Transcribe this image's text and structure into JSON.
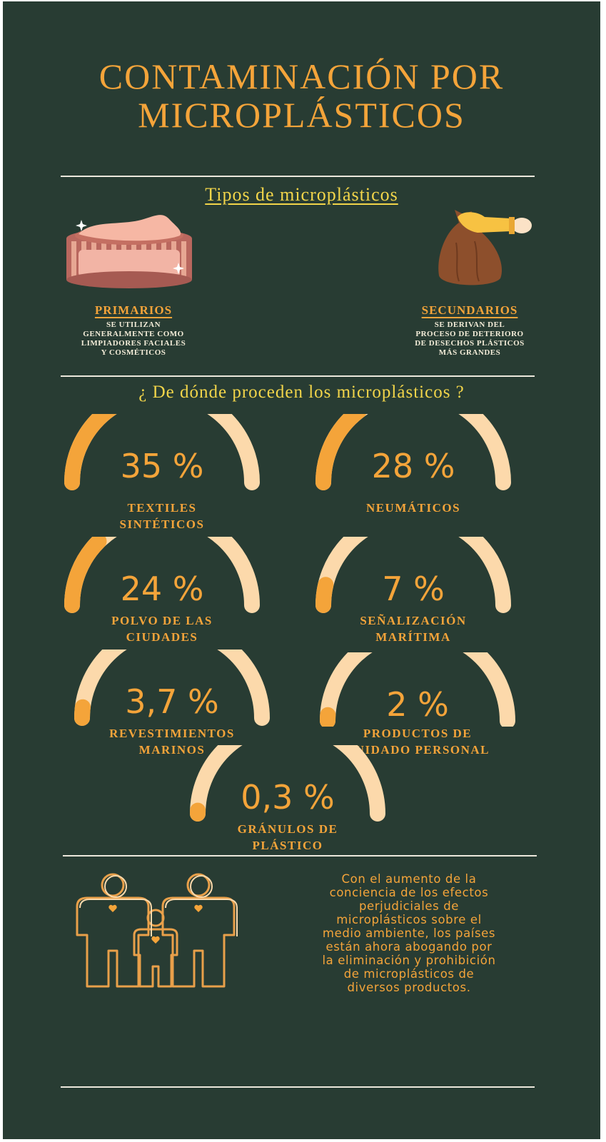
{
  "title": {
    "line1": "CONTAMINACIÓN POR",
    "line2": "MICROPLÁSTICOS"
  },
  "types": {
    "heading": "Tipos de microplásticos",
    "primary": {
      "label": "PRIMARIOS",
      "desc": [
        "SE UTILIZAN",
        "GENERALMENTE COMO",
        "LIMPIADORES FACIALES",
        "Y COSMÉTICOS"
      ],
      "icon": "cream-jar-icon"
    },
    "secondary": {
      "label": "SECUNDARIOS",
      "desc": [
        "SE DERIVAN DEL",
        "PROCESO DE DETERIORO",
        "DE DESECHOS PLÁSTICOS",
        "MÁS GRANDES"
      ],
      "icon": "trash-bag-icon"
    }
  },
  "sources": {
    "heading": "¿ De dónde proceden los microplásticos ?",
    "items": [
      {
        "value": "35 %",
        "fraction": 0.35,
        "label": [
          "TEXTILES",
          "SINTÉTICOS"
        ]
      },
      {
        "value": "28 %",
        "fraction": 0.28,
        "label": [
          "NEUMÁTICOS"
        ]
      },
      {
        "value": "24 %",
        "fraction": 0.24,
        "label": [
          "POLVO DE LAS",
          "CIUDADES"
        ]
      },
      {
        "value": "7 %",
        "fraction": 0.07,
        "label": [
          "SEÑALIZACIÓN",
          "MARÍTIMA"
        ]
      },
      {
        "value": "3,7 %",
        "fraction": 0.037,
        "label": [
          "REVESTIMIENTOS",
          "MARINOS"
        ]
      },
      {
        "value": "2 %",
        "fraction": 0.02,
        "label": [
          "PRODUCTOS DE",
          "CUIDADO PERSONAL"
        ]
      },
      {
        "value": "0,3 %",
        "fraction": 0.003,
        "label": [
          "GRÁNULOS DE",
          "PLÁSTICO"
        ]
      }
    ]
  },
  "footer": {
    "icon": "family-icon",
    "text": [
      "Con el aumento de la",
      "conciencia de los efectos",
      "perjudiciales de",
      "microplásticos sobre el",
      "medio ambiente, los países",
      "están ahora abogando por",
      "la eliminación y prohibición",
      "de microplásticos de",
      "diversos productos."
    ]
  },
  "colors": {
    "background": "#283c33",
    "accent": "#f4a43a",
    "highlight": "#f2d54a",
    "track": "#fcd9ab",
    "text_light": "#f3ecd8"
  }
}
